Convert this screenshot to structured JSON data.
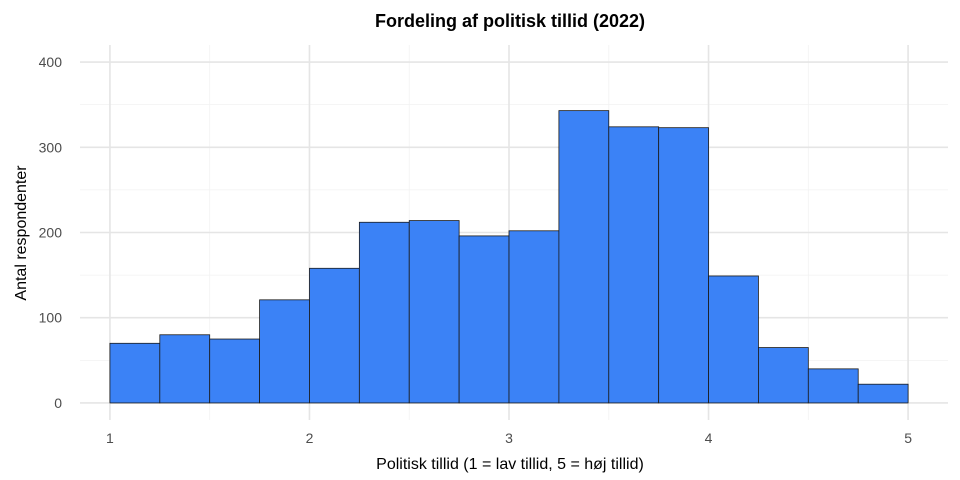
{
  "chart_data": {
    "type": "bar",
    "title": "Fordeling af politisk tillid (2022)",
    "xlabel": "Politisk tillid (1 = lav tillid, 5 = høj tillid)",
    "ylabel": "Antal respondenter",
    "bin_width": 0.25,
    "bins": [
      {
        "x0": 1.0,
        "x1": 1.25,
        "count": 70
      },
      {
        "x0": 1.25,
        "x1": 1.5,
        "count": 80
      },
      {
        "x0": 1.5,
        "x1": 1.75,
        "count": 75
      },
      {
        "x0": 1.75,
        "x1": 2.0,
        "count": 121
      },
      {
        "x0": 2.0,
        "x1": 2.25,
        "count": 158
      },
      {
        "x0": 2.25,
        "x1": 2.5,
        "count": 212
      },
      {
        "x0": 2.5,
        "x1": 2.75,
        "count": 214
      },
      {
        "x0": 2.75,
        "x1": 3.0,
        "count": 196
      },
      {
        "x0": 3.0,
        "x1": 3.25,
        "count": 202
      },
      {
        "x0": 3.25,
        "x1": 3.5,
        "count": 343
      },
      {
        "x0": 3.5,
        "x1": 3.75,
        "count": 324
      },
      {
        "x0": 3.75,
        "x1": 4.0,
        "count": 323
      },
      {
        "x0": 4.0,
        "x1": 4.25,
        "count": 149
      },
      {
        "x0": 4.25,
        "x1": 4.5,
        "count": 65
      },
      {
        "x0": 4.5,
        "x1": 4.75,
        "count": 40
      },
      {
        "x0": 4.75,
        "x1": 5.0,
        "count": 22
      }
    ],
    "xlim": [
      0.85,
      5.2
    ],
    "ylim": [
      -20,
      420
    ],
    "x_ticks": [
      1,
      2,
      3,
      4,
      5
    ],
    "x_tick_labels": [
      "1",
      "2",
      "3",
      "4",
      "5"
    ],
    "y_ticks": [
      0,
      100,
      200,
      300,
      400
    ],
    "y_tick_labels": [
      "0",
      "100",
      "200",
      "300",
      "400"
    ],
    "bar_color": "#3b82f6",
    "bar_outline_color": "#1a1a1a",
    "grid": true,
    "legend": "none"
  }
}
